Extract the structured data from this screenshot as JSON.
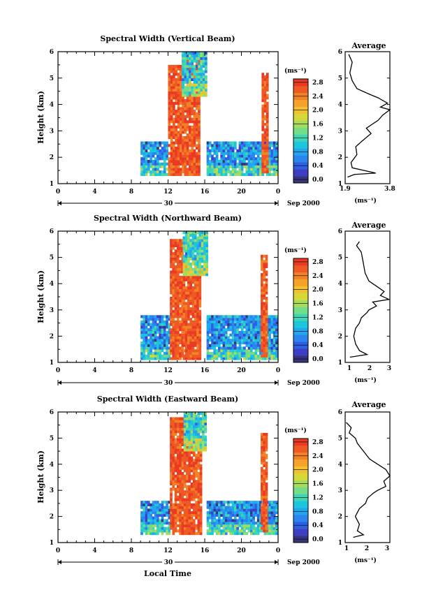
{
  "colorbar_unit": "(ms⁻¹)",
  "avg_xlabel": "(ms⁻¹)",
  "sep_label": "Sep 2000",
  "date_label": "30",
  "xlabel": "Local Time",
  "ylabel": "Height (km)",
  "panel_colors": [
    "#36347a",
    "#3c3ec4",
    "#2e5fe3",
    "#2c84ee",
    "#21a7f0",
    "#1ec6dc",
    "#3fd6b6",
    "#74dd8a",
    "#a7dc5a",
    "#d6d83a",
    "#f1c12e",
    "#f7a32a",
    "#f38226",
    "#ef5a24",
    "#ea3a24"
  ],
  "panels": [
    {
      "title": "Spectral Width (Vertical Beam)",
      "avg_title": "Average",
      "colorbar_ticks": [
        "0.0",
        "0.4",
        "0.8",
        "1.2",
        "1.6",
        "2.0",
        "2.4",
        "2.8"
      ],
      "avg_xticks": [
        "1.9",
        "3.8"
      ]
    },
    {
      "title": "Spectral Width (Northward Beam)",
      "avg_title": "Average",
      "colorbar_ticks": [
        "0.0",
        "0.4",
        "0.8",
        "1.2",
        "1.6",
        "2.0",
        "2.4",
        "2.8"
      ],
      "avg_xticks": [
        "1",
        "2",
        "3"
      ]
    },
    {
      "title": "Spectral Width (Eastward Beam)",
      "avg_title": "Average",
      "colorbar_ticks": [
        "0.0",
        "0.4",
        "0.8",
        "1.2",
        "1.6",
        "2.0",
        "2.4",
        "2.8"
      ],
      "avg_xticks": [
        "1",
        "2",
        "3"
      ]
    }
  ],
  "chart_data": [
    {
      "type": "heatmap",
      "title": "Spectral Width (Vertical Beam)",
      "xlabel": "",
      "ylabel": "Height (km)",
      "xlim": [
        0,
        24
      ],
      "ylim": [
        1,
        6
      ],
      "x_ticks": [
        "0",
        "4",
        "8",
        "12",
        "16",
        "20",
        "0"
      ],
      "y_ticks": [
        "1",
        "2",
        "3",
        "4",
        "5",
        "6"
      ],
      "colorbar": {
        "unit": "(ms⁻¹)",
        "range": [
          0,
          3.0
        ],
        "ticks": [
          0.0,
          0.4,
          0.8,
          1.2,
          1.6,
          2.0,
          2.4,
          2.8
        ]
      },
      "regions": [
        {
          "t": [
            9,
            12
          ],
          "h": [
            1.3,
            2.6
          ],
          "value": 0.9
        },
        {
          "t": [
            12,
            13.5
          ],
          "h": [
            1.3,
            5.5
          ],
          "value": 2.9
        },
        {
          "t": [
            13.5,
            15.5
          ],
          "h": [
            1.3,
            5.9
          ],
          "value": 2.8
        },
        {
          "t": [
            13.5,
            16.2
          ],
          "h": [
            4.3,
            6.0
          ],
          "value": 1.2
        },
        {
          "t": [
            16.2,
            23.8
          ],
          "h": [
            1.3,
            2.6
          ],
          "value": 0.9
        },
        {
          "t": [
            22.2,
            22.8
          ],
          "h": [
            1.4,
            5.2
          ],
          "value": 2.9
        }
      ]
    },
    {
      "type": "line",
      "title": "Average",
      "xlabel": "(ms⁻¹)",
      "ylabel": "",
      "xlim": [
        1.9,
        3.8
      ],
      "ylim": [
        1,
        6
      ],
      "x": [
        2.0,
        2.3,
        3.2,
        2.2,
        2.15,
        2.4,
        2.35,
        2.6,
        3.0,
        2.8,
        3.3,
        3.5,
        3.8,
        3.4,
        3.7,
        3.3,
        2.9,
        2.4,
        2.2,
        2.1,
        2.2,
        2.05
      ],
      "y": [
        1.25,
        1.35,
        1.4,
        1.6,
        1.8,
        2.1,
        2.4,
        2.6,
        2.9,
        3.1,
        3.4,
        3.6,
        3.8,
        3.9,
        4.05,
        4.25,
        4.4,
        4.6,
        4.9,
        5.2,
        5.6,
        5.9
      ]
    },
    {
      "type": "heatmap",
      "title": "Spectral Width (Northward Beam)",
      "xlabel": "",
      "ylabel": "Height (km)",
      "xlim": [
        0,
        24
      ],
      "ylim": [
        1,
        6
      ],
      "x_ticks": [
        "0",
        "4",
        "8",
        "12",
        "16",
        "20",
        "0"
      ],
      "y_ticks": [
        "1",
        "2",
        "3",
        "4",
        "5",
        "6"
      ],
      "colorbar": {
        "unit": "(ms⁻¹)",
        "range": [
          0,
          3.0
        ],
        "ticks": [
          0.0,
          0.4,
          0.8,
          1.2,
          1.6,
          2.0,
          2.4,
          2.8
        ]
      },
      "regions": [
        {
          "t": [
            9,
            12.2
          ],
          "h": [
            1.1,
            2.8
          ],
          "value": 0.9
        },
        {
          "t": [
            12.2,
            13.6
          ],
          "h": [
            1.1,
            5.7
          ],
          "value": 2.9
        },
        {
          "t": [
            13.6,
            15.6
          ],
          "h": [
            1.1,
            4.5
          ],
          "value": 2.8
        },
        {
          "t": [
            13.6,
            16.2
          ],
          "h": [
            4.3,
            6.0
          ],
          "value": 1.3
        },
        {
          "t": [
            16.2,
            23.8
          ],
          "h": [
            1.1,
            2.8
          ],
          "value": 0.9
        },
        {
          "t": [
            22.1,
            22.8
          ],
          "h": [
            1.2,
            5.1
          ],
          "value": 2.9
        }
      ]
    },
    {
      "type": "line",
      "title": "Average",
      "xlabel": "(ms⁻¹)",
      "ylabel": "",
      "xlim": [
        0.75,
        3.1
      ],
      "ylim": [
        1,
        6
      ],
      "x": [
        1.0,
        1.9,
        1.5,
        1.3,
        1.2,
        1.3,
        1.5,
        1.6,
        1.9,
        2.0,
        2.4,
        2.2,
        3.05,
        2.6,
        2.8,
        2.5,
        2.0,
        1.8,
        1.7,
        1.6,
        1.35,
        1.5
      ],
      "y": [
        1.2,
        1.3,
        1.45,
        1.7,
        2.0,
        2.3,
        2.5,
        2.7,
        2.9,
        3.0,
        3.15,
        3.3,
        3.4,
        3.55,
        3.7,
        3.85,
        4.1,
        4.4,
        4.8,
        5.2,
        5.45,
        5.6
      ]
    },
    {
      "type": "heatmap",
      "title": "Spectral Width (Eastward Beam)",
      "xlabel": "Local Time",
      "ylabel": "Height (km)",
      "xlim": [
        0,
        24
      ],
      "ylim": [
        1,
        6
      ],
      "x_ticks": [
        "0",
        "4",
        "8",
        "12",
        "16",
        "20",
        "0"
      ],
      "y_ticks": [
        "1",
        "2",
        "3",
        "4",
        "5",
        "6"
      ],
      "colorbar": {
        "unit": "(ms⁻¹)",
        "range": [
          0,
          3.0
        ],
        "ticks": [
          0.0,
          0.4,
          0.8,
          1.2,
          1.6,
          2.0,
          2.4,
          2.8
        ]
      },
      "regions": [
        {
          "t": [
            9,
            12.2
          ],
          "h": [
            1.3,
            2.6
          ],
          "value": 0.9
        },
        {
          "t": [
            12.2,
            13.7
          ],
          "h": [
            1.3,
            5.8
          ],
          "value": 2.9
        },
        {
          "t": [
            13.7,
            15.6
          ],
          "h": [
            1.3,
            5.0
          ],
          "value": 2.9
        },
        {
          "t": [
            13.7,
            16.2
          ],
          "h": [
            4.5,
            6.0
          ],
          "value": 1.3
        },
        {
          "t": [
            16.2,
            23.8
          ],
          "h": [
            1.3,
            2.6
          ],
          "value": 0.9
        },
        {
          "t": [
            22.1,
            22.8
          ],
          "h": [
            1.4,
            5.2
          ],
          "value": 2.9
        }
      ]
    },
    {
      "type": "line",
      "title": "Average",
      "xlabel": "(ms⁻¹)",
      "ylabel": "",
      "xlim": [
        1.0,
        3.2
      ],
      "ylim": [
        1,
        6
      ],
      "x": [
        1.4,
        1.9,
        1.6,
        1.7,
        1.5,
        1.7,
        2.0,
        2.1,
        2.4,
        2.6,
        3.0,
        2.9,
        3.2,
        3.0,
        2.6,
        2.2,
        1.9,
        1.6,
        1.5,
        1.2,
        1.3,
        1.05
      ],
      "y": [
        1.2,
        1.3,
        1.45,
        1.7,
        2.0,
        2.3,
        2.5,
        2.7,
        2.9,
        3.0,
        3.15,
        3.35,
        3.55,
        3.8,
        4.0,
        4.2,
        4.5,
        4.8,
        5.0,
        5.2,
        5.4,
        5.6
      ]
    }
  ]
}
